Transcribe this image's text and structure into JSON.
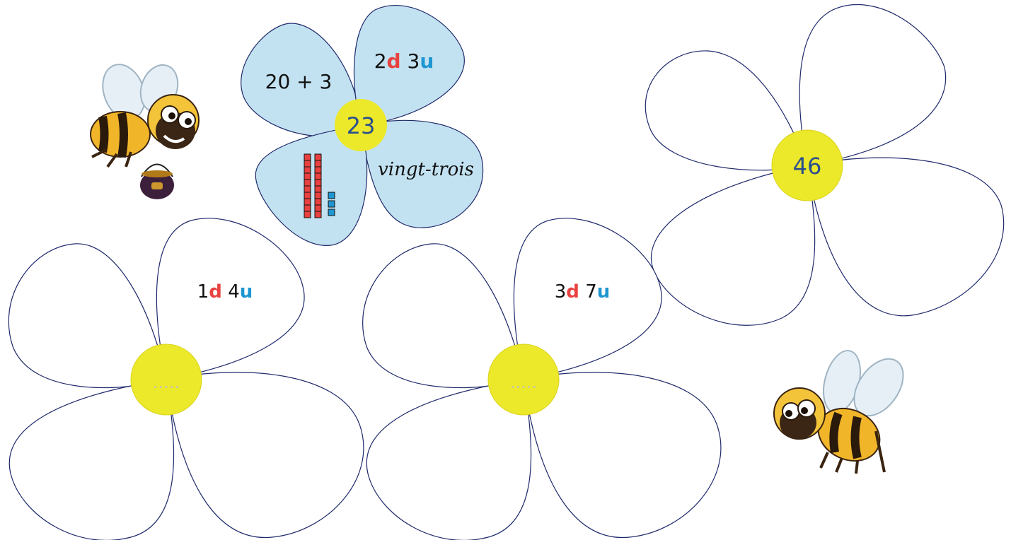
{
  "colors": {
    "outline": "#1f2a6b",
    "petal_filled": "#c3e2f1",
    "center": "#ece82a",
    "center_text": "#2a4f8f",
    "dizaine": "#e8413f",
    "unite": "#1e96d1",
    "placeholder": "#c9c7a3"
  },
  "example_flower": {
    "center": "23",
    "petal_addition": "20 + 3",
    "petal_decomposition": {
      "d_value": "2",
      "d_letter": "d",
      "u_value": "3",
      "u_letter": "u"
    },
    "petal_words": "vingt-trois",
    "blocks": {
      "tens": 2,
      "units": 3
    }
  },
  "flower_46": {
    "center": "46"
  },
  "flower_14": {
    "center_placeholder": ".....",
    "petal_decomposition": {
      "d_value": "1",
      "d_letter": "d",
      "u_value": "4",
      "u_letter": "u"
    }
  },
  "flower_37": {
    "center_placeholder": ".....",
    "petal_decomposition": {
      "d_value": "3",
      "d_letter": "d",
      "u_value": "7",
      "u_letter": "u"
    }
  },
  "decor": {
    "bee_pot_icon": "bee-with-honey-pot-icon",
    "bee_icon": "flying-bee-icon"
  }
}
